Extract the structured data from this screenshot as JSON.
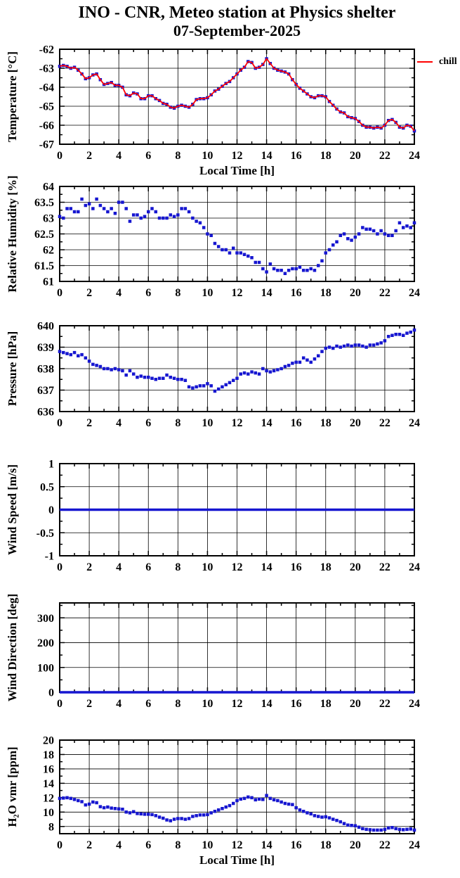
{
  "title": {
    "line1": "INO - CNR, Meteo station at Physics shelter",
    "line2": "07-September-2025"
  },
  "legend": {
    "label": "chill",
    "color": "#ff0000"
  },
  "colors": {
    "data_blue": "#1616d0",
    "chill_red": "#ff0000",
    "grid": "#000000"
  },
  "x_axis": {
    "label": "Local Time [h]",
    "min": 0,
    "max": 24,
    "major_ticks": [
      0,
      2,
      4,
      6,
      8,
      10,
      12,
      14,
      16,
      18,
      20,
      22,
      24
    ],
    "tick_labels": [
      "0",
      "2",
      "4",
      "6",
      "8",
      "10",
      "12",
      "14",
      "16",
      "18",
      "20",
      "22",
      "24"
    ],
    "minor_step": 1
  },
  "chart_data": [
    {
      "name": "temperature",
      "type": "scatter",
      "ylabel": "Temperature [°C]",
      "ylim": [
        -67,
        -62
      ],
      "yticks": [
        -67,
        -66,
        -65,
        -64,
        -63,
        -62
      ],
      "ytick_labels": [
        "-67",
        "-66",
        "-65",
        "-64",
        "-63",
        "-62"
      ],
      "y_minor_step": 0.5,
      "x_start": 0,
      "x_step": 0.25,
      "show_xlabel": true,
      "series": [
        {
          "name": "temperature",
          "style": "squares",
          "color": "#1616d0",
          "values": [
            -62.9,
            -62.85,
            -62.9,
            -63.0,
            -62.95,
            -63.1,
            -63.3,
            -63.55,
            -63.5,
            -63.35,
            -63.3,
            -63.6,
            -63.85,
            -63.8,
            -63.75,
            -63.9,
            -63.9,
            -64.0,
            -64.4,
            -64.45,
            -64.3,
            -64.35,
            -64.6,
            -64.6,
            -64.45,
            -64.45,
            -64.6,
            -64.7,
            -64.85,
            -64.9,
            -65.05,
            -65.1,
            -65.0,
            -64.95,
            -65.0,
            -65.05,
            -64.9,
            -64.65,
            -64.6,
            -64.6,
            -64.55,
            -64.4,
            -64.2,
            -64.1,
            -63.95,
            -63.8,
            -63.7,
            -63.5,
            -63.3,
            -63.1,
            -62.95,
            -62.65,
            -62.7,
            -63.0,
            -62.95,
            -62.8,
            -62.5,
            -62.75,
            -63.0,
            -63.1,
            -63.15,
            -63.2,
            -63.3,
            -63.6,
            -63.85,
            -64.05,
            -64.2,
            -64.35,
            -64.5,
            -64.55,
            -64.45,
            -64.45,
            -64.5,
            -64.75,
            -64.95,
            -65.15,
            -65.3,
            -65.35,
            -65.55,
            -65.6,
            -65.65,
            -65.8,
            -66.0,
            -66.1,
            -66.1,
            -66.15,
            -66.1,
            -66.15,
            -66.0,
            -65.75,
            -65.7,
            -65.85,
            -66.1,
            -66.15,
            -66.0,
            -66.05,
            -66.3
          ]
        },
        {
          "name": "chill",
          "style": "line",
          "color": "#ff0000",
          "same_as": "temperature"
        }
      ]
    },
    {
      "name": "relative_humidity",
      "type": "scatter",
      "ylabel": "Relative Humidity [%]",
      "ylim": [
        61,
        64
      ],
      "yticks": [
        61,
        61.5,
        62,
        62.5,
        63,
        63.5,
        64
      ],
      "ytick_labels": [
        "61",
        "61.5",
        "62",
        "62.5",
        "63",
        "63.5",
        "64"
      ],
      "y_minor_step": 0.25,
      "x_start": 0,
      "x_step": 0.25,
      "show_xlabel": false,
      "series": [
        {
          "name": "relative_humidity",
          "style": "squares",
          "color": "#1616d0",
          "values": [
            63.05,
            63.0,
            63.3,
            63.3,
            63.2,
            63.2,
            63.6,
            63.4,
            63.45,
            63.3,
            63.6,
            63.4,
            63.3,
            63.2,
            63.3,
            63.15,
            63.5,
            63.5,
            63.3,
            62.9,
            63.1,
            63.1,
            63.0,
            63.05,
            63.2,
            63.3,
            63.2,
            63.0,
            63.0,
            63.0,
            63.1,
            63.05,
            63.1,
            63.3,
            63.3,
            63.2,
            63.0,
            62.9,
            62.85,
            62.7,
            62.5,
            62.45,
            62.2,
            62.1,
            62.0,
            62.0,
            61.9,
            62.05,
            61.9,
            61.9,
            61.85,
            61.8,
            61.75,
            61.6,
            61.6,
            61.4,
            61.3,
            61.55,
            61.4,
            61.35,
            61.35,
            61.25,
            61.35,
            61.4,
            61.4,
            61.45,
            61.35,
            61.35,
            61.4,
            61.35,
            61.5,
            61.65,
            61.9,
            62.0,
            62.15,
            62.25,
            62.45,
            62.5,
            62.35,
            62.3,
            62.4,
            62.5,
            62.7,
            62.65,
            62.65,
            62.6,
            62.5,
            62.6,
            62.5,
            62.45,
            62.45,
            62.6,
            62.85,
            62.7,
            62.75,
            62.7,
            62.85
          ]
        }
      ]
    },
    {
      "name": "pressure",
      "type": "scatter",
      "ylabel": "Pressure [hPa]",
      "ylim": [
        636,
        640
      ],
      "yticks": [
        636,
        637,
        638,
        639,
        640
      ],
      "ytick_labels": [
        "636",
        "637",
        "638",
        "639",
        "640"
      ],
      "y_minor_step": 0.5,
      "x_start": 0,
      "x_step": 0.25,
      "show_xlabel": false,
      "series": [
        {
          "name": "pressure",
          "style": "squares",
          "color": "#1616d0",
          "values": [
            638.8,
            638.75,
            638.7,
            638.65,
            638.75,
            638.6,
            638.65,
            638.5,
            638.35,
            638.2,
            638.15,
            638.1,
            638.0,
            638.0,
            637.95,
            638.0,
            637.95,
            637.9,
            637.7,
            637.9,
            637.75,
            637.6,
            637.65,
            637.6,
            637.6,
            637.55,
            637.5,
            637.55,
            637.55,
            637.7,
            637.6,
            637.55,
            637.5,
            637.5,
            637.45,
            637.15,
            637.1,
            637.15,
            637.2,
            637.2,
            637.3,
            637.2,
            636.95,
            637.05,
            637.15,
            637.25,
            637.35,
            637.45,
            637.55,
            637.75,
            637.8,
            637.75,
            637.85,
            637.8,
            637.75,
            638.0,
            637.9,
            637.85,
            637.9,
            637.95,
            638.0,
            638.1,
            638.15,
            638.25,
            638.3,
            638.3,
            638.5,
            638.4,
            638.3,
            638.45,
            638.6,
            638.8,
            638.95,
            639.0,
            638.95,
            639.05,
            639.0,
            639.05,
            639.1,
            639.05,
            639.1,
            639.1,
            639.05,
            639.0,
            639.1,
            639.1,
            639.15,
            639.2,
            639.3,
            639.5,
            639.55,
            639.6,
            639.6,
            639.55,
            639.65,
            639.7,
            639.8
          ]
        }
      ]
    },
    {
      "name": "wind_speed",
      "type": "line",
      "ylabel": "Wind Speed [m/s]",
      "ylim": [
        -1,
        1
      ],
      "yticks": [
        -1,
        -0.5,
        0,
        0.5,
        1
      ],
      "ytick_labels": [
        "-1",
        "-0.5",
        "0",
        "0.5",
        "1"
      ],
      "y_minor_step": 0.25,
      "x_start": 0,
      "x_step": 24,
      "show_xlabel": false,
      "series": [
        {
          "name": "wind_speed",
          "style": "thickline",
          "color": "#1616d0",
          "values": [
            0,
            0
          ]
        }
      ]
    },
    {
      "name": "wind_direction",
      "type": "line",
      "ylabel": "Wind Direction [deg]",
      "ylim": [
        0,
        360
      ],
      "yticks": [
        0,
        100,
        200,
        300
      ],
      "ytick_labels": [
        "0",
        "100",
        "200",
        "300"
      ],
      "y_minor_step": 50,
      "x_start": 0,
      "x_step": 24,
      "show_xlabel": false,
      "series": [
        {
          "name": "wind_direction",
          "style": "thickline",
          "color": "#1616d0",
          "values": [
            0,
            0
          ]
        }
      ]
    },
    {
      "name": "h2o_vmr",
      "type": "scatter",
      "ylabel": "H₂O vmr [ppm]",
      "ylim": [
        7,
        20
      ],
      "yticks": [
        8,
        10,
        12,
        14,
        16,
        18,
        20
      ],
      "ytick_labels": [
        "8",
        "10",
        "12",
        "14",
        "16",
        "18",
        "20"
      ],
      "y_minor_step": 1,
      "x_start": 0,
      "x_step": 0.25,
      "show_xlabel": true,
      "series": [
        {
          "name": "h2o_vmr",
          "style": "squares",
          "color": "#1616d0",
          "values": [
            11.9,
            11.95,
            12.0,
            11.9,
            11.75,
            11.6,
            11.45,
            11.0,
            11.1,
            11.4,
            11.3,
            10.75,
            10.6,
            10.7,
            10.55,
            10.5,
            10.45,
            10.4,
            10.0,
            9.9,
            10.05,
            9.8,
            9.75,
            9.7,
            9.7,
            9.65,
            9.5,
            9.3,
            9.15,
            8.9,
            8.8,
            9.0,
            9.1,
            9.1,
            9.0,
            9.1,
            9.4,
            9.5,
            9.6,
            9.6,
            9.65,
            9.9,
            10.1,
            10.3,
            10.5,
            10.7,
            10.9,
            11.2,
            11.6,
            11.8,
            11.9,
            12.1,
            12.0,
            11.7,
            11.8,
            11.75,
            12.3,
            11.9,
            11.7,
            11.6,
            11.4,
            11.2,
            11.1,
            11.05,
            10.6,
            10.3,
            10.1,
            9.9,
            9.75,
            9.5,
            9.4,
            9.3,
            9.35,
            9.2,
            9.0,
            8.85,
            8.65,
            8.4,
            8.2,
            8.15,
            8.1,
            7.9,
            7.7,
            7.6,
            7.55,
            7.5,
            7.5,
            7.5,
            7.6,
            7.8,
            7.85,
            7.7,
            7.6,
            7.55,
            7.6,
            7.65,
            7.5
          ]
        }
      ]
    }
  ]
}
